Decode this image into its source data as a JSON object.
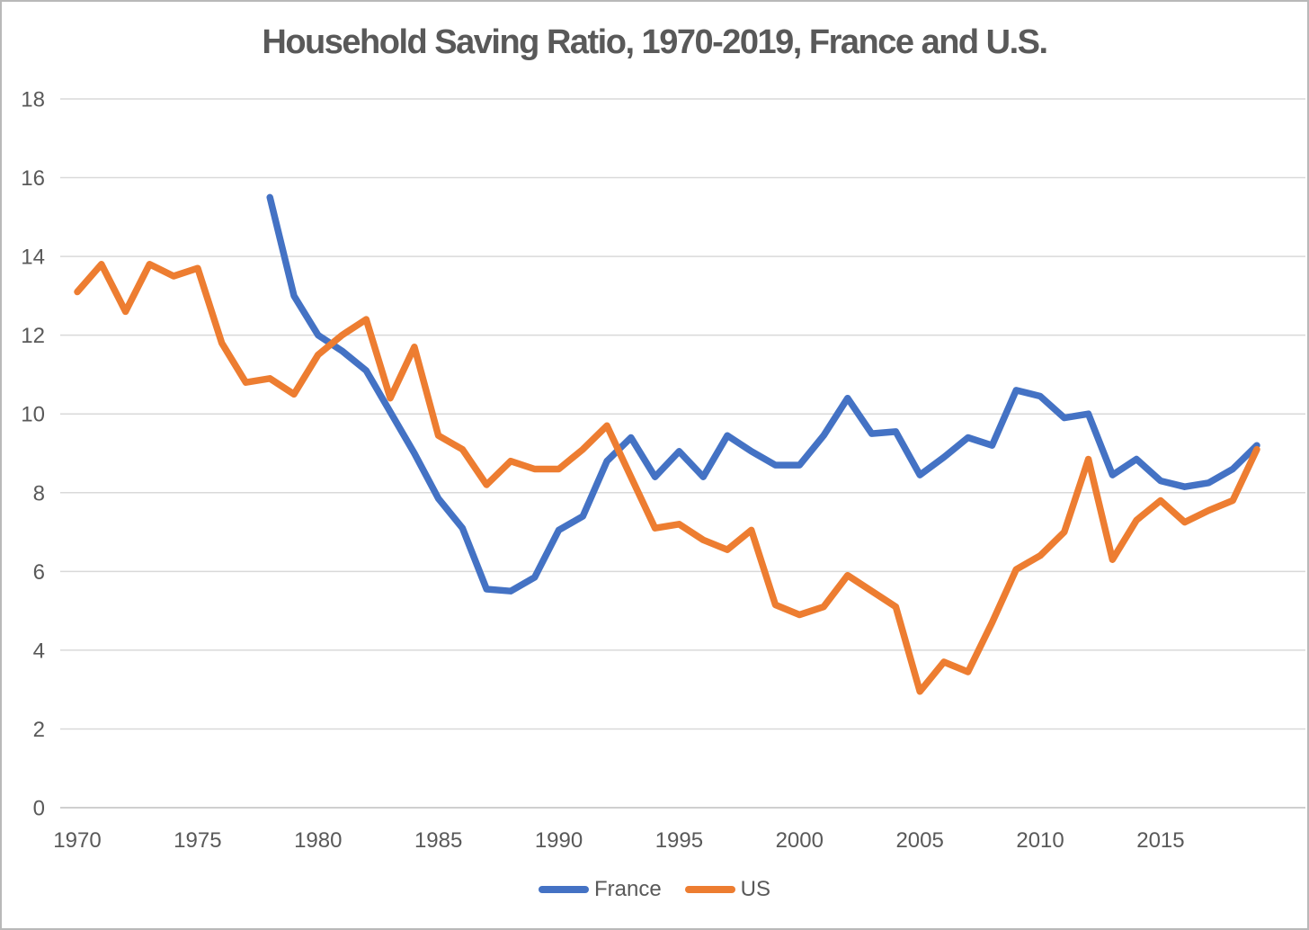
{
  "chart_data": {
    "type": "line",
    "title": "Household Saving Ratio, 1970-2019, France and U.S.",
    "xlabel": "",
    "ylabel": "",
    "xlim": [
      1970,
      2019
    ],
    "ylim": [
      0,
      18
    ],
    "grid": true,
    "legend_position": "bottom",
    "xticks": [
      1970,
      1975,
      1980,
      1985,
      1990,
      1995,
      2000,
      2005,
      2010,
      2015
    ],
    "yticks": [
      0,
      2,
      4,
      6,
      8,
      10,
      12,
      14,
      16,
      18
    ],
    "x": [
      1970,
      1971,
      1972,
      1973,
      1974,
      1975,
      1976,
      1977,
      1978,
      1979,
      1980,
      1981,
      1982,
      1983,
      1984,
      1985,
      1986,
      1987,
      1988,
      1989,
      1990,
      1991,
      1992,
      1993,
      1994,
      1995,
      1996,
      1997,
      1998,
      1999,
      2000,
      2001,
      2002,
      2003,
      2004,
      2005,
      2006,
      2007,
      2008,
      2009,
      2010,
      2011,
      2012,
      2013,
      2014,
      2015,
      2016,
      2017,
      2018,
      2019
    ],
    "series": [
      {
        "name": "France",
        "color": "#4472C4",
        "values": [
          null,
          null,
          null,
          null,
          null,
          null,
          null,
          null,
          15.5,
          13.0,
          12.0,
          11.6,
          11.1,
          10.05,
          9.0,
          7.85,
          7.1,
          5.55,
          5.5,
          5.85,
          7.05,
          7.4,
          8.8,
          9.4,
          8.4,
          9.05,
          8.4,
          9.45,
          9.05,
          8.7,
          8.7,
          9.45,
          10.4,
          9.5,
          9.55,
          8.45,
          8.9,
          9.4,
          9.2,
          10.6,
          10.45,
          9.9,
          10.0,
          8.45,
          8.85,
          8.3,
          8.15,
          8.25,
          8.6,
          9.2
        ]
      },
      {
        "name": "US",
        "color": "#ED7D31",
        "values": [
          13.1,
          13.8,
          12.6,
          13.8,
          13.5,
          13.7,
          11.8,
          10.8,
          10.9,
          10.5,
          11.5,
          12.0,
          12.4,
          10.4,
          11.7,
          9.45,
          9.1,
          8.2,
          8.8,
          8.6,
          8.6,
          9.1,
          9.7,
          8.4,
          7.1,
          7.2,
          6.8,
          6.55,
          7.05,
          5.15,
          4.9,
          5.1,
          5.9,
          5.5,
          5.1,
          2.95,
          3.7,
          3.45,
          4.7,
          6.05,
          6.4,
          7.0,
          8.85,
          6.3,
          7.3,
          7.8,
          7.25,
          7.55,
          7.8,
          9.1
        ]
      }
    ],
    "style": {
      "grid_color": "#D9D9D9",
      "axis_color": "#BFBFBF",
      "label_color": "#595959",
      "line_width": 7.5
    }
  }
}
